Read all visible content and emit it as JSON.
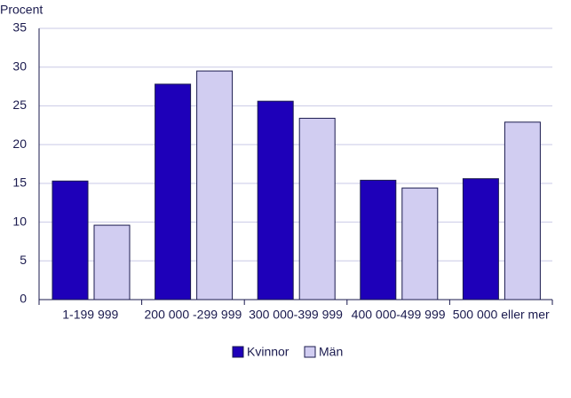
{
  "chart_data": {
    "type": "bar",
    "y_label": "Procent",
    "categories": [
      "1-199 999",
      "200 000 -299 999",
      "300 000-399 999",
      "400 000-499 999",
      "500 000 eller mer"
    ],
    "series": [
      {
        "name": "Kvinnor",
        "color": "#1e00b9",
        "values": [
          15.3,
          27.8,
          25.6,
          15.4,
          15.6
        ]
      },
      {
        "name": "Män",
        "color": "#d1cdf1",
        "values": [
          9.6,
          29.5,
          23.4,
          14.4,
          22.9
        ]
      }
    ],
    "ylim": [
      0,
      35
    ],
    "yticks": [
      0,
      5,
      10,
      15,
      20,
      25,
      30,
      35
    ],
    "grid": true,
    "legend": "bottom"
  }
}
